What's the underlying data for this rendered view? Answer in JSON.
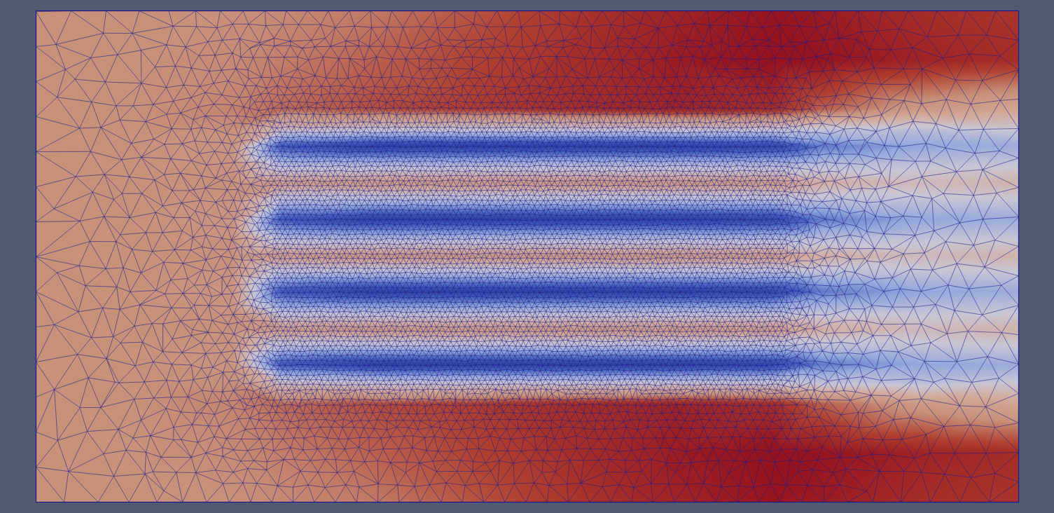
{
  "chart_data": {
    "type": "heatmap",
    "xlim": [
      0,
      2
    ],
    "ylim": [
      0,
      1
    ],
    "tick_labels": false,
    "zlim": [
      0,
      1
    ],
    "x": [
      0,
      0.2,
      0.4,
      0.5,
      0.7,
      0.9,
      1.1,
      1.3,
      1.5,
      1.6,
      1.8,
      2.0
    ],
    "y": [
      0,
      0.1,
      0.2,
      0.244,
      0.28,
      0.315,
      0.351,
      0.39,
      0.429,
      0.465,
      0.501,
      0.538,
      0.576,
      0.613,
      0.65,
      0.688,
      0.725,
      0.757,
      0.8,
      0.9,
      1.0
    ],
    "values": [
      [
        0.72,
        0.72,
        0.72,
        0.73,
        0.76,
        0.82,
        0.88,
        0.93,
        0.97,
        0.95,
        0.9,
        0.88
      ],
      [
        0.72,
        0.72,
        0.73,
        0.75,
        0.8,
        0.85,
        0.9,
        0.95,
        0.98,
        0.97,
        0.93,
        0.9
      ],
      [
        0.72,
        0.72,
        0.74,
        0.78,
        0.83,
        0.86,
        0.9,
        0.93,
        0.9,
        0.8,
        0.68,
        0.62
      ],
      [
        0.72,
        0.72,
        0.72,
        0.5,
        0.45,
        0.45,
        0.45,
        0.45,
        0.45,
        0.42,
        0.4,
        0.45
      ],
      [
        0.72,
        0.72,
        0.7,
        0.12,
        0.02,
        0.02,
        0.02,
        0.02,
        0.05,
        0.2,
        0.3,
        0.32
      ],
      [
        0.72,
        0.72,
        0.71,
        0.4,
        0.38,
        0.38,
        0.38,
        0.38,
        0.38,
        0.4,
        0.42,
        0.44
      ],
      [
        0.72,
        0.72,
        0.72,
        0.66,
        0.68,
        0.68,
        0.68,
        0.68,
        0.66,
        0.58,
        0.52,
        0.55
      ],
      [
        0.72,
        0.72,
        0.71,
        0.4,
        0.38,
        0.38,
        0.38,
        0.38,
        0.38,
        0.4,
        0.42,
        0.44
      ],
      [
        0.72,
        0.72,
        0.7,
        0.12,
        0.02,
        0.02,
        0.02,
        0.02,
        0.05,
        0.2,
        0.3,
        0.32
      ],
      [
        0.72,
        0.72,
        0.71,
        0.4,
        0.38,
        0.38,
        0.38,
        0.38,
        0.38,
        0.4,
        0.42,
        0.44
      ],
      [
        0.72,
        0.72,
        0.72,
        0.66,
        0.68,
        0.68,
        0.68,
        0.68,
        0.66,
        0.58,
        0.52,
        0.55
      ],
      [
        0.72,
        0.72,
        0.71,
        0.4,
        0.38,
        0.38,
        0.38,
        0.38,
        0.38,
        0.4,
        0.42,
        0.44
      ],
      [
        0.72,
        0.72,
        0.7,
        0.12,
        0.02,
        0.02,
        0.02,
        0.02,
        0.05,
        0.2,
        0.3,
        0.32
      ],
      [
        0.72,
        0.72,
        0.71,
        0.4,
        0.38,
        0.38,
        0.38,
        0.38,
        0.38,
        0.4,
        0.42,
        0.44
      ],
      [
        0.72,
        0.72,
        0.72,
        0.66,
        0.68,
        0.68,
        0.68,
        0.68,
        0.66,
        0.58,
        0.52,
        0.55
      ],
      [
        0.72,
        0.72,
        0.71,
        0.4,
        0.38,
        0.38,
        0.38,
        0.38,
        0.38,
        0.4,
        0.42,
        0.44
      ],
      [
        0.72,
        0.72,
        0.7,
        0.12,
        0.02,
        0.02,
        0.02,
        0.02,
        0.05,
        0.2,
        0.3,
        0.32
      ],
      [
        0.72,
        0.72,
        0.72,
        0.5,
        0.45,
        0.45,
        0.45,
        0.45,
        0.45,
        0.42,
        0.4,
        0.45
      ],
      [
        0.72,
        0.72,
        0.74,
        0.78,
        0.83,
        0.86,
        0.9,
        0.93,
        0.9,
        0.8,
        0.68,
        0.62
      ],
      [
        0.72,
        0.72,
        0.73,
        0.75,
        0.8,
        0.85,
        0.9,
        0.95,
        0.98,
        0.97,
        0.93,
        0.9
      ],
      [
        0.72,
        0.72,
        0.72,
        0.73,
        0.76,
        0.82,
        0.88,
        0.93,
        0.97,
        0.95,
        0.9,
        0.88
      ]
    ]
  }
}
